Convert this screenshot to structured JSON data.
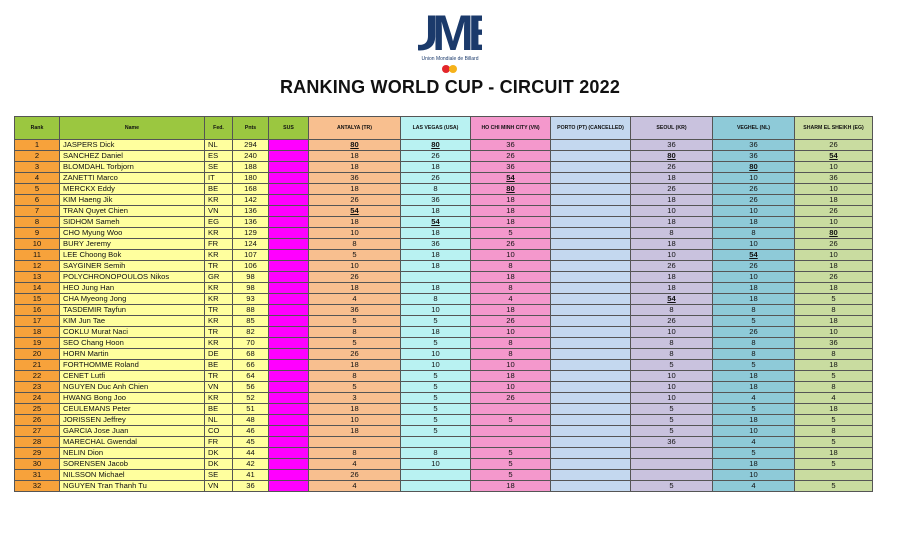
{
  "logo": {
    "text": "UMB",
    "subtitle": "Union Mondiale de Billard",
    "dot_colors": [
      "#e3262b",
      "#f6b21a",
      "#1b3a6b"
    ]
  },
  "title": "RANKING WORLD CUP - CIRCUIT 2022",
  "columns": [
    {
      "key": "rank",
      "label": "Rank"
    },
    {
      "key": "name",
      "label": "Name"
    },
    {
      "key": "fed",
      "label": "Fed."
    },
    {
      "key": "pts",
      "label": "Pnts"
    },
    {
      "key": "sus",
      "label": "SUS"
    },
    {
      "key": "antalya",
      "label": "ANTALYA (TR)"
    },
    {
      "key": "lv",
      "label": "LAS VEGAS (USA)"
    },
    {
      "key": "hcm",
      "label": "HO CHI MINH CITY (VN)"
    },
    {
      "key": "porto",
      "label": "PORTO (PT) (CANCELLED)"
    },
    {
      "key": "seoul",
      "label": "SEOUL (KR)"
    },
    {
      "key": "veghel",
      "label": "VEGHEL (NL)"
    },
    {
      "key": "sharm",
      "label": "SHARM EL SHEIKH (EG)"
    }
  ],
  "rows": [
    [
      "1",
      "JASPERS Dick",
      "NL",
      "294",
      "",
      "80",
      "80",
      "36",
      "",
      "36",
      "36",
      "26"
    ],
    [
      "2",
      "SANCHEZ Daniel",
      "ES",
      "240",
      "",
      "18",
      "26",
      "26",
      "",
      "80",
      "36",
      "54"
    ],
    [
      "3",
      "BLOMDAHL Torbjorn",
      "SE",
      "188",
      "",
      "18",
      "18",
      "36",
      "",
      "26",
      "80",
      "10"
    ],
    [
      "4",
      "ZANETTI Marco",
      "IT",
      "180",
      "",
      "36",
      "26",
      "54",
      "",
      "18",
      "10",
      "36"
    ],
    [
      "5",
      "MERCKX Eddy",
      "BE",
      "168",
      "",
      "18",
      "8",
      "80",
      "",
      "26",
      "26",
      "10"
    ],
    [
      "6",
      "KIM Haeng Jik",
      "KR",
      "142",
      "",
      "26",
      "36",
      "18",
      "",
      "18",
      "26",
      "18"
    ],
    [
      "7",
      "TRAN Quyet Chien",
      "VN",
      "136",
      "",
      "54",
      "18",
      "18",
      "",
      "10",
      "10",
      "26"
    ],
    [
      "8",
      "SIDHOM Sameh",
      "EG",
      "136",
      "",
      "18",
      "54",
      "18",
      "",
      "18",
      "18",
      "10"
    ],
    [
      "9",
      "CHO Myung Woo",
      "KR",
      "129",
      "",
      "10",
      "18",
      "5",
      "",
      "8",
      "8",
      "80"
    ],
    [
      "10",
      "BURY Jeremy",
      "FR",
      "124",
      "",
      "8",
      "36",
      "26",
      "",
      "18",
      "10",
      "26"
    ],
    [
      "11",
      "LEE Choong Bok",
      "KR",
      "107",
      "",
      "5",
      "18",
      "10",
      "",
      "10",
      "54",
      "10"
    ],
    [
      "12",
      "SAYGINER Semih",
      "TR",
      "106",
      "",
      "10",
      "18",
      "8",
      "",
      "26",
      "26",
      "18"
    ],
    [
      "13",
      "POLYCHRONOPOULOS Nikos",
      "GR",
      "98",
      "",
      "26",
      "",
      "18",
      "",
      "18",
      "10",
      "26"
    ],
    [
      "14",
      "HEO Jung Han",
      "KR",
      "98",
      "",
      "18",
      "18",
      "8",
      "",
      "18",
      "18",
      "18"
    ],
    [
      "15",
      "CHA Myeong Jong",
      "KR",
      "93",
      "",
      "4",
      "8",
      "4",
      "",
      "54",
      "18",
      "5"
    ],
    [
      "16",
      "TASDEMIR Tayfun",
      "TR",
      "88",
      "",
      "36",
      "10",
      "18",
      "",
      "8",
      "8",
      "8"
    ],
    [
      "17",
      "KIM Jun Tae",
      "KR",
      "85",
      "",
      "5",
      "5",
      "26",
      "",
      "26",
      "5",
      "18"
    ],
    [
      "18",
      "COKLU Murat Naci",
      "TR",
      "82",
      "",
      "8",
      "18",
      "10",
      "",
      "10",
      "26",
      "10"
    ],
    [
      "19",
      "SEO Chang Hoon",
      "KR",
      "70",
      "",
      "5",
      "5",
      "8",
      "",
      "8",
      "8",
      "36"
    ],
    [
      "20",
      "HORN Martin",
      "DE",
      "68",
      "",
      "26",
      "10",
      "8",
      "",
      "8",
      "8",
      "8"
    ],
    [
      "21",
      "FORTHOMME Roland",
      "BE",
      "66",
      "",
      "18",
      "10",
      "10",
      "",
      "5",
      "5",
      "18"
    ],
    [
      "22",
      "CENET Lutfi",
      "TR",
      "64",
      "",
      "8",
      "5",
      "18",
      "",
      "10",
      "18",
      "5"
    ],
    [
      "23",
      "NGUYEN Duc Anh Chien",
      "VN",
      "56",
      "",
      "5",
      "5",
      "10",
      "",
      "10",
      "18",
      "8"
    ],
    [
      "24",
      "HWANG Bong Joo",
      "KR",
      "52",
      "",
      "3",
      "5",
      "26",
      "",
      "10",
      "4",
      "4"
    ],
    [
      "25",
      "CEULEMANS Peter",
      "BE",
      "51",
      "",
      "18",
      "5",
      "",
      "",
      "5",
      "5",
      "18"
    ],
    [
      "26",
      "JORISSEN Jeffrey",
      "NL",
      "48",
      "",
      "10",
      "5",
      "5",
      "",
      "5",
      "18",
      "5"
    ],
    [
      "27",
      "GARCIA Jose Juan",
      "CO",
      "46",
      "",
      "18",
      "5",
      "",
      "",
      "5",
      "10",
      "8"
    ],
    [
      "28",
      "MARECHAL Gwendal",
      "FR",
      "45",
      "",
      "",
      "",
      "",
      "",
      "36",
      "4",
      "5"
    ],
    [
      "29",
      "NELIN Dion",
      "DK",
      "44",
      "",
      "8",
      "8",
      "5",
      "",
      "",
      "5",
      "18"
    ],
    [
      "30",
      "SORENSEN Jacob",
      "DK",
      "42",
      "",
      "4",
      "10",
      "5",
      "",
      "",
      "18",
      "5"
    ],
    [
      "31",
      "NILSSON Michael",
      "SE",
      "41",
      "",
      "26",
      "",
      "5",
      "",
      "",
      "10",
      ""
    ],
    [
      "32",
      "NGUYEN Tran Thanh Tu",
      "VN",
      "36",
      "",
      "4",
      "",
      "18",
      "",
      "5",
      "4",
      "5"
    ]
  ],
  "winner_score": "80",
  "runner_up_score": "54"
}
